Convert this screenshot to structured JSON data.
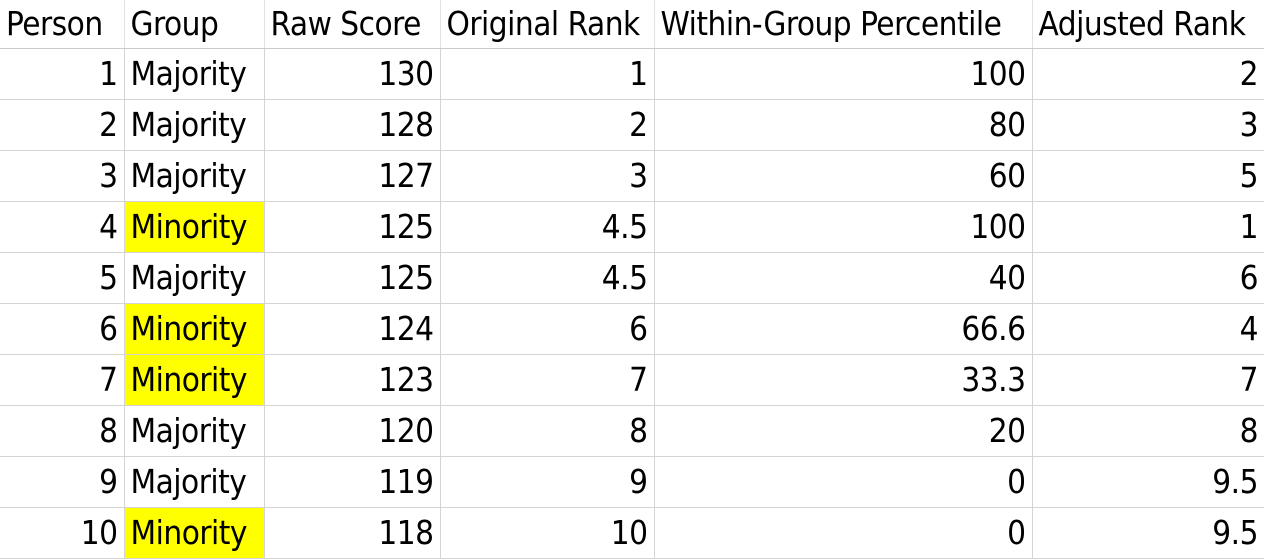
{
  "table": {
    "headers": [
      "Person",
      "Group",
      "Raw Score",
      "Original Rank",
      "Within-Group Percentile",
      "Adjusted Rank"
    ],
    "highlight_color": "#ffff00",
    "highlight_group": "Minority",
    "rows": [
      [
        "1",
        "Majority",
        "130",
        "1",
        "100",
        "2"
      ],
      [
        "2",
        "Majority",
        "128",
        "2",
        "80",
        "3"
      ],
      [
        "3",
        "Majority",
        "127",
        "3",
        "60",
        "5"
      ],
      [
        "4",
        "Minority",
        "125",
        "4.5",
        "100",
        "1"
      ],
      [
        "5",
        "Majority",
        "125",
        "4.5",
        "40",
        "6"
      ],
      [
        "6",
        "Minority",
        "124",
        "6",
        "66.6",
        "4"
      ],
      [
        "7",
        "Minority",
        "123",
        "7",
        "33.3",
        "7"
      ],
      [
        "8",
        "Majority",
        "120",
        "8",
        "20",
        "8"
      ],
      [
        "9",
        "Majority",
        "119",
        "9",
        "0",
        "9.5"
      ],
      [
        "10",
        "Minority",
        "118",
        "10",
        "0",
        "9.5"
      ]
    ]
  }
}
